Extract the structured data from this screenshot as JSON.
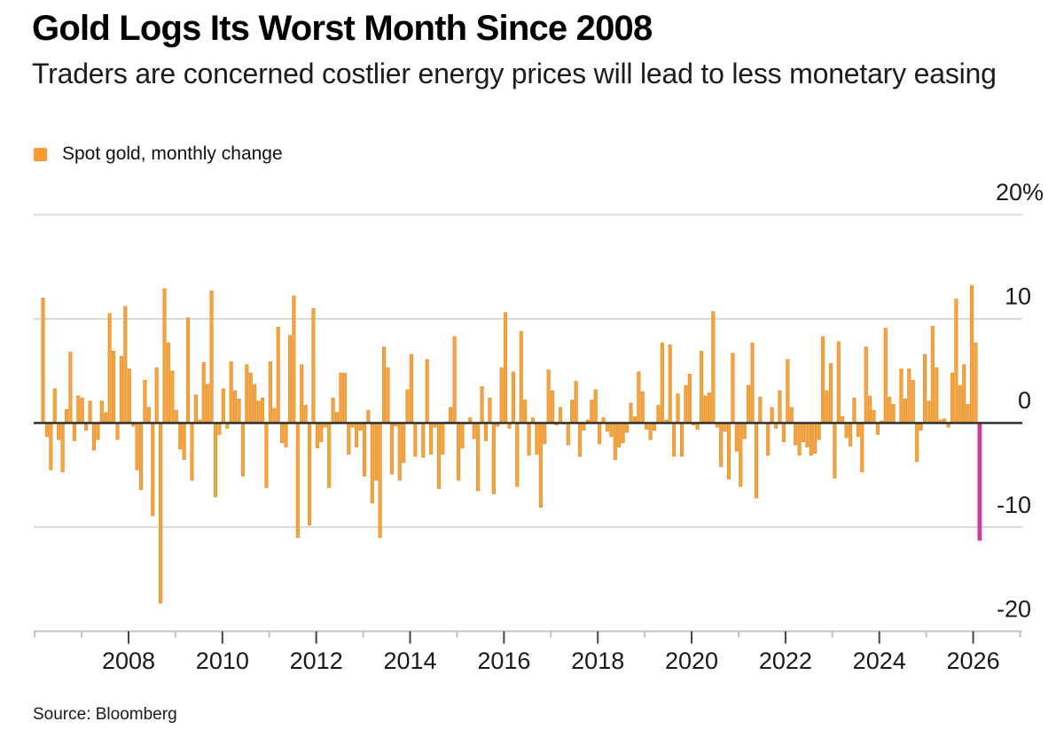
{
  "header": {
    "title": "Gold Logs Its Worst Month Since 2008",
    "subtitle": "Traders are concerned costlier energy prices will lead to less monetary easing"
  },
  "legend": {
    "label": "Spot gold, monthly change",
    "swatch_color": "#F89B32"
  },
  "source": "Source: Bloomberg",
  "chart_data": {
    "type": "bar",
    "title": "Gold Logs Its Worst Month Since 2008",
    "series_name": "Spot gold, monthly change",
    "unit": "percent",
    "frequency": "monthly",
    "start_month": "2006-04",
    "end_month": "2026-03",
    "bar_color": "#F6A53E",
    "bar_edge_color": "#DF8F2D",
    "highlight": {
      "index": 239,
      "value": -11.3,
      "color": "#CD3C9F",
      "note": "Worst month since 2008"
    },
    "values": [
      12.0,
      -1.3,
      -4.5,
      3.3,
      -1.6,
      -4.7,
      1.3,
      6.8,
      -1.7,
      2.6,
      2.4,
      -0.7,
      2.1,
      -2.6,
      -1.6,
      2.1,
      1.0,
      10.5,
      6.9,
      -1.6,
      6.4,
      11.2,
      5.2,
      -0.3,
      -4.5,
      -6.4,
      4.1,
      1.5,
      -8.9,
      5.3,
      -17.3,
      12.9,
      7.7,
      5.0,
      1.2,
      -2.5,
      -3.5,
      10.1,
      -5.5,
      2.7,
      0.3,
      5.8,
      3.7,
      12.7,
      -7.1,
      -1.1,
      3.3,
      -0.5,
      5.9,
      3.1,
      2.3,
      -5.1,
      5.6,
      4.8,
      3.7,
      2.1,
      2.4,
      -6.2,
      5.9,
      1.4,
      9.2,
      -1.9,
      -2.3,
      8.4,
      12.2,
      -11.0,
      5.6,
      1.7,
      -9.8,
      11.0,
      -2.4,
      -1.8,
      -0.4,
      -6.2,
      2.4,
      1.0,
      4.8,
      4.8,
      -3.0,
      -0.4,
      -2.3,
      -0.7,
      -5.1,
      1.2,
      -7.7,
      -5.5,
      -11.0,
      7.3,
      5.3,
      -4.9,
      -0.3,
      -5.5,
      -3.8,
      3.2,
      6.6,
      -3.2,
      -0.1,
      -3.3,
      6.1,
      -3.0,
      -0.4,
      -6.3,
      -3.0,
      0.1,
      1.5,
      8.3,
      -5.5,
      -2.4,
      -0.1,
      0.5,
      -1.5,
      -6.5,
      3.5,
      -1.7,
      2.4,
      -6.8,
      -0.3,
      5.3,
      10.6,
      -0.5,
      4.9,
      -6.1,
      8.8,
      2.2,
      -3.1,
      0.5,
      -3.0,
      -8.1,
      -2.0,
      5.1,
      3.1,
      -0.2,
      1.5,
      -0.1,
      -2.1,
      2.2,
      4.0,
      -3.2,
      -0.7,
      0.3,
      2.2,
      3.2,
      -2.0,
      0.5,
      -0.8,
      -1.3,
      -3.5,
      -2.3,
      -1.9,
      -0.9,
      1.9,
      0.6,
      4.9,
      3.0,
      -0.6,
      -1.6,
      -0.7,
      1.7,
      7.7,
      0.3,
      7.5,
      -3.2,
      2.8,
      -3.2,
      3.6,
      4.7,
      -0.2,
      -0.6,
      6.9,
      2.6,
      2.9,
      10.7,
      -0.4,
      -4.2,
      -0.8,
      -5.4,
      6.7,
      -2.7,
      -6.1,
      -1.5,
      3.6,
      7.7,
      -7.2,
      2.5,
      0.0,
      -3.1,
      1.5,
      -0.5,
      3.1,
      -1.8,
      6.1,
      1.5,
      -2.1,
      -3.1,
      -1.8,
      -2.3,
      -3.1,
      -2.9,
      -1.6,
      8.3,
      3.1,
      5.7,
      -5.3,
      7.8,
      0.6,
      -1.4,
      -2.2,
      2.4,
      -1.3,
      -4.7,
      7.3,
      2.6,
      1.2,
      -1.1,
      0.2,
      9.1,
      2.5,
      1.8,
      0.0,
      5.2,
      2.3,
      5.2,
      4.1,
      -3.7,
      -0.7,
      6.6,
      2.1,
      9.3,
      5.3,
      0.3,
      0.4,
      -0.4,
      4.8,
      11.9,
      3.6,
      5.6,
      1.8,
      13.2,
      7.7,
      -11.3
    ],
    "y_axis": {
      "range": [
        -20,
        20
      ],
      "ticks": [
        20,
        10,
        0,
        -10,
        -20
      ],
      "tick_labels": [
        "20%",
        "10",
        "0",
        "-10",
        "-20"
      ],
      "gridline_color": "#DADADA",
      "zero_line_color": "#2F2F2F",
      "label_color": "#1a1a1a"
    },
    "x_axis": {
      "major_tick_years": [
        2008,
        2010,
        2012,
        2014,
        2016,
        2018,
        2020,
        2022,
        2024,
        2026
      ],
      "major_tick_labels": [
        "2008",
        "2010",
        "2012",
        "2014",
        "2016",
        "2018",
        "2020",
        "2022",
        "2024",
        "2026"
      ],
      "minor_tick_years": [
        2006,
        2007,
        2009,
        2011,
        2013,
        2015,
        2017,
        2019,
        2021,
        2023,
        2025,
        2027
      ],
      "axis_line_color": "#C6C6C6",
      "major_tick_color": "#444444",
      "minor_tick_color": "#C0C0C0",
      "label_color": "#1a1a1a"
    }
  }
}
